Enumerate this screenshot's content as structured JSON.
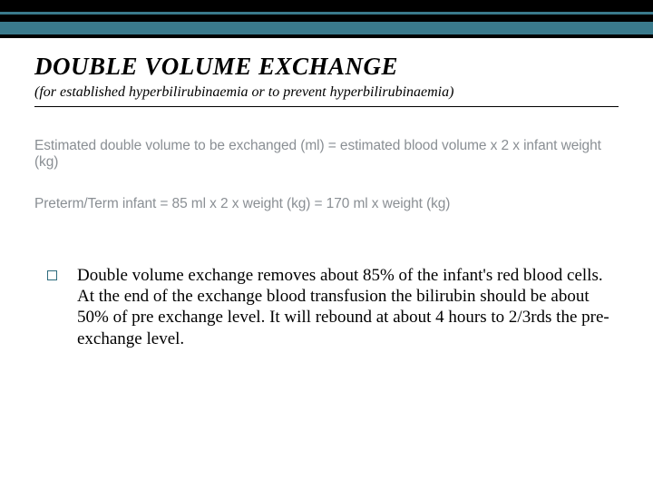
{
  "header": {
    "title": "DOUBLE VOLUME EXCHANGE",
    "subtitle": "(for established hyperbilirubinaemia or to prevent hyperbilirubinaemia)"
  },
  "formulas": {
    "line1": "Estimated double volume to be exchanged (ml) = estimated blood volume x 2 x infant weight (kg)",
    "line2": "Preterm/Term infant = 85 ml x 2 x weight (kg) = 170 ml x weight (kg)"
  },
  "bullet": {
    "text": "Double volume exchange removes about 85% of the infant's red blood cells. At the end of the exchange blood transfusion the bilirubin should be about 50% of pre exchange level. It will rebound at about 4 hours to 2/3rds the pre-exchange level."
  },
  "colors": {
    "accent_teal": "#3a7a8c",
    "formula_grey": "#8a8f94",
    "bullet_border": "#2d6b7d"
  }
}
